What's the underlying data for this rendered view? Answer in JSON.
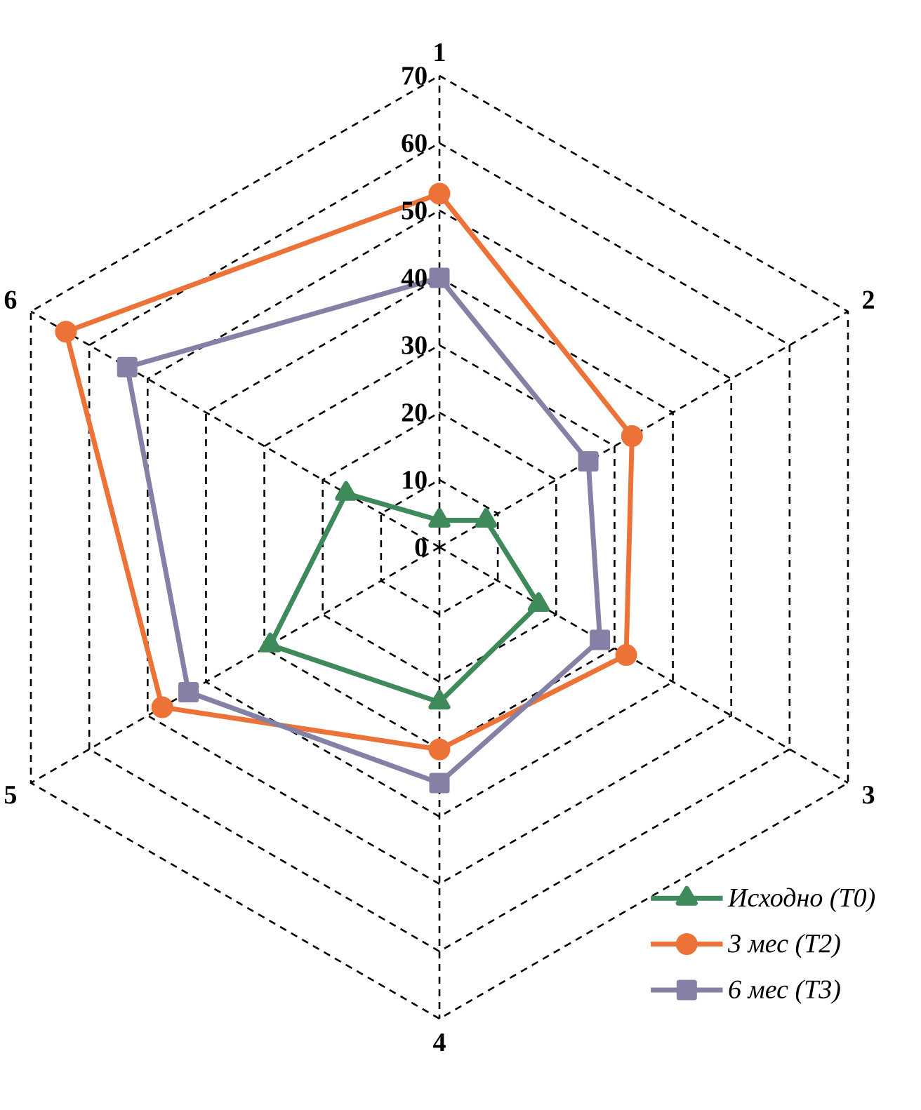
{
  "chart_data": {
    "type": "radar",
    "categories": [
      "1",
      "2",
      "3",
      "4",
      "5",
      "6"
    ],
    "ylim": [
      0,
      70
    ],
    "yticks": [
      0,
      10,
      20,
      30,
      40,
      50,
      60,
      70
    ],
    "grid": true,
    "legend": "bottom right",
    "line_style": "solid",
    "series": [
      {
        "name": "Исходно (Т0)",
        "color": "#3f8a5a",
        "marker": "triangle",
        "values": [
          4,
          8,
          17,
          23,
          29,
          16
        ]
      },
      {
        "name": "3 мес (Т2)",
        "color": "#ec7237",
        "marker": "circle",
        "values": [
          52.5,
          33,
          32,
          30,
          47.5,
          64
        ]
      },
      {
        "name": "6 мес (Т3)",
        "color": "#8580a6",
        "marker": "square",
        "values": [
          40,
          25.5,
          27.5,
          35,
          43,
          53.5
        ]
      }
    ]
  }
}
